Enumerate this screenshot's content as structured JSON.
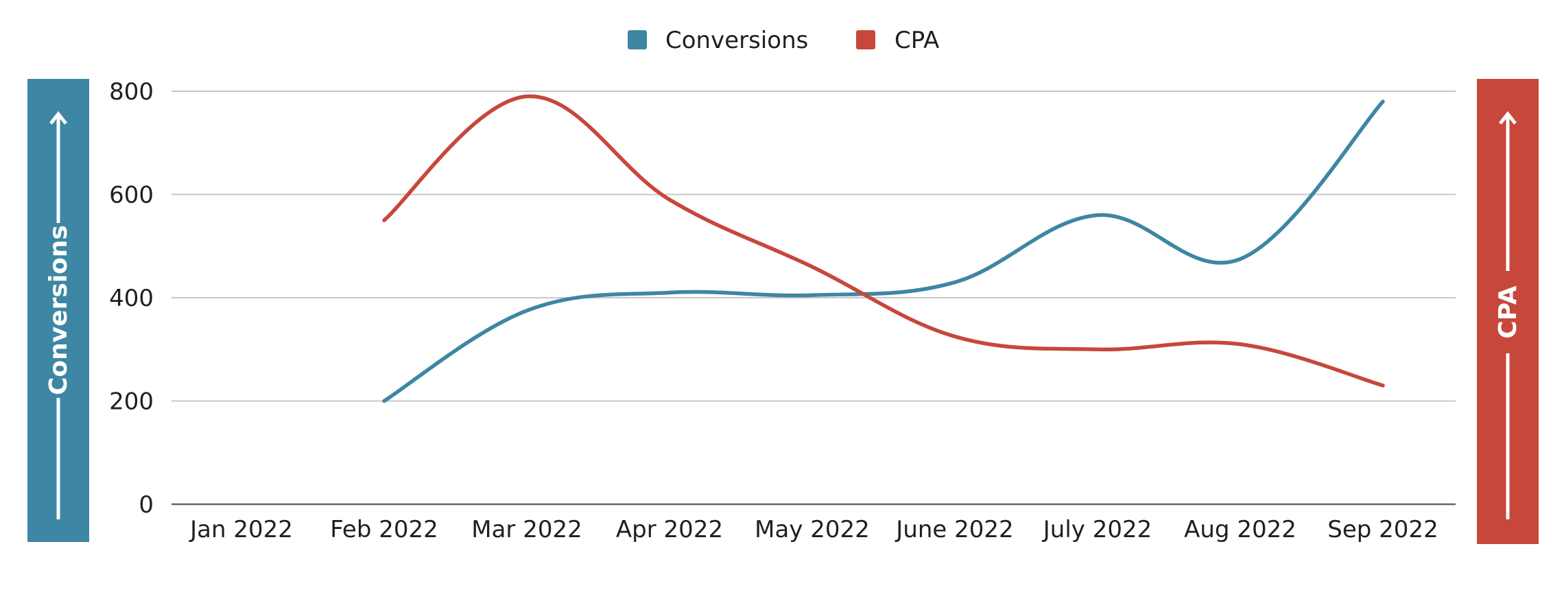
{
  "chart_data": {
    "type": "line",
    "categories": [
      "Jan 2022",
      "Feb 2022",
      "Mar 2022",
      "Apr 2022",
      "May 2022",
      "June 2022",
      "July 2022",
      "Aug 2022",
      "Sep 2022"
    ],
    "series": [
      {
        "name": "Conversions",
        "color": "#3d86a4",
        "axis": "left",
        "values": [
          null,
          200,
          375,
          410,
          405,
          430,
          560,
          475,
          780
        ]
      },
      {
        "name": "CPA",
        "color": "#c7473b",
        "axis": "right",
        "values": [
          null,
          550,
          790,
          590,
          460,
          325,
          300,
          310,
          230
        ]
      }
    ],
    "ylabel": "Conversions",
    "ylabel_right": "CPA",
    "ylim": [
      0,
      800
    ],
    "yticks": [
      "0",
      "200",
      "400",
      "600",
      "800"
    ],
    "grid": true,
    "legend_position": "top-center",
    "colors": {
      "left_axis_band": "#3d86a4",
      "right_axis_band": "#c7473b",
      "gridline": "#c8c8c8",
      "baseline": "#666666"
    }
  }
}
